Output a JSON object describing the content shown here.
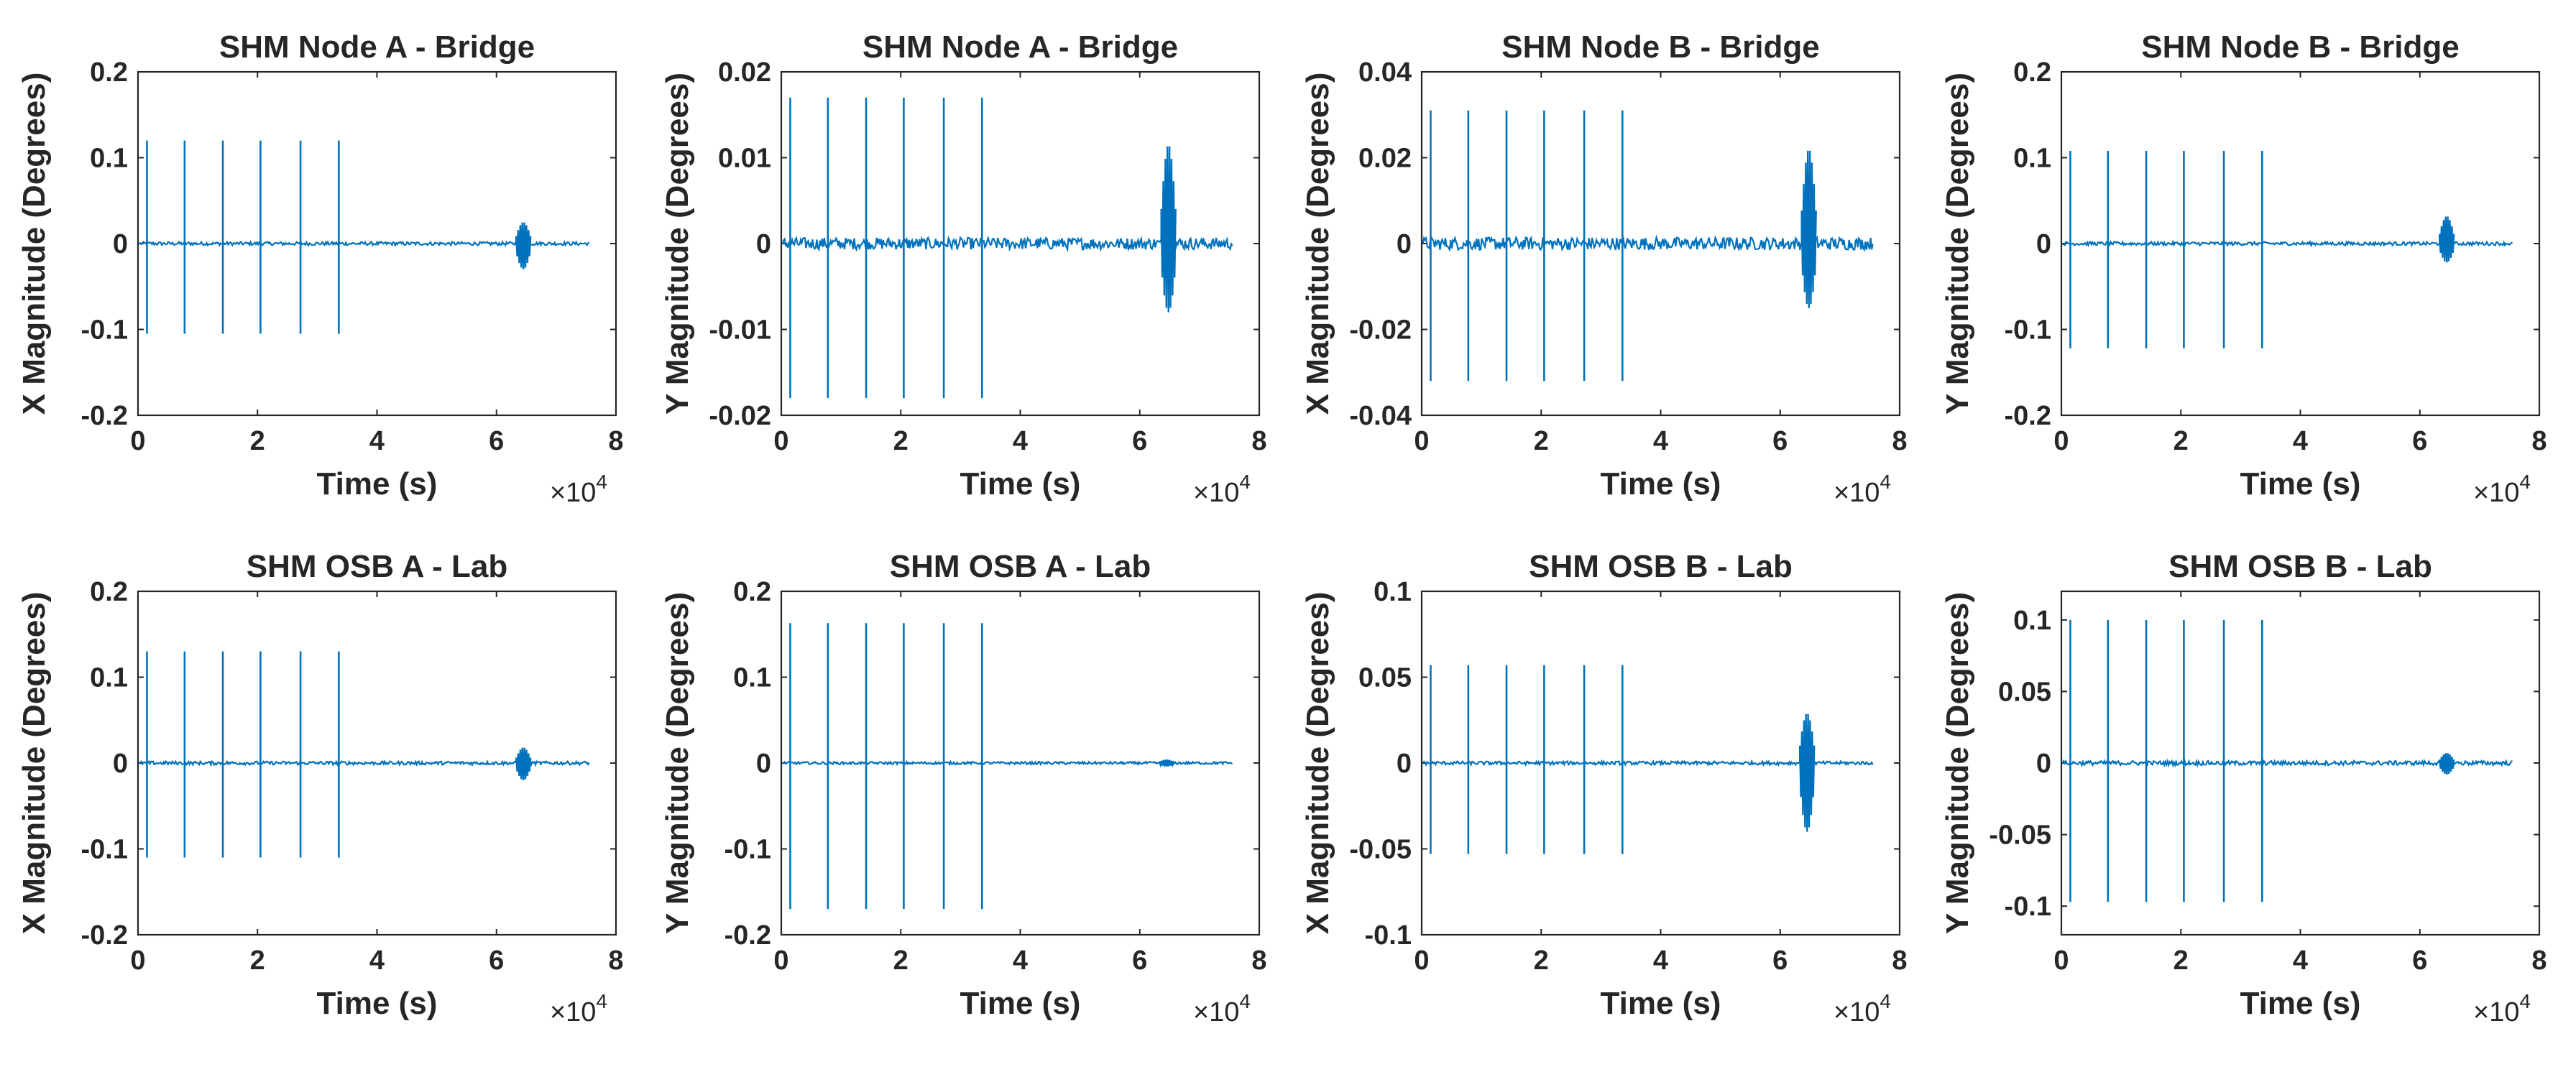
{
  "figure": {
    "background": "#ffffff",
    "axis_color": "#262626",
    "series_color": "#0072BD"
  },
  "chart_data": [
    {
      "type": "line",
      "title": "SHM Node A - Bridge",
      "xlabel": "Time (s)",
      "ylabel": "X Magnitude (Degrees)",
      "xlim": [
        0,
        8
      ],
      "ylim": [
        -0.2,
        0.2
      ],
      "x_multiplier": "×10",
      "x_exponent": "4",
      "xticks": [
        "0",
        "2",
        "4",
        "6",
        "8"
      ],
      "yticks": [
        "-0.2",
        "-0.1",
        "0",
        "0.1",
        "0.2"
      ],
      "grid": false,
      "x_data_end": 7.55,
      "baseline_noise": 0.002,
      "spikes": [
        {
          "x": 0.15,
          "top": 0.12,
          "bottom": -0.105
        },
        {
          "x": 0.78,
          "top": 0.12,
          "bottom": -0.105
        },
        {
          "x": 1.42,
          "top": 0.12,
          "bottom": -0.105
        },
        {
          "x": 2.05,
          "top": 0.12,
          "bottom": -0.105
        },
        {
          "x": 2.72,
          "top": 0.12,
          "bottom": -0.105
        },
        {
          "x": 3.36,
          "top": 0.12,
          "bottom": -0.105
        }
      ],
      "bursts": [
        {
          "x": 6.45,
          "top": 0.025,
          "bottom": -0.03
        }
      ]
    },
    {
      "type": "line",
      "title": "SHM Node A - Bridge",
      "xlabel": "Time (s)",
      "ylabel": "Y Magnitude (Degrees)",
      "xlim": [
        0,
        8
      ],
      "ylim": [
        -0.02,
        0.02
      ],
      "x_multiplier": "×10",
      "x_exponent": "4",
      "xticks": [
        "0",
        "2",
        "4",
        "6",
        "8"
      ],
      "yticks": [
        "-0.02",
        "-0.01",
        "0",
        "0.01",
        "0.02"
      ],
      "grid": false,
      "x_data_end": 7.55,
      "baseline_noise": 0.0007,
      "spikes": [
        {
          "x": 0.15,
          "top": 0.017,
          "bottom": -0.018
        },
        {
          "x": 0.78,
          "top": 0.017,
          "bottom": -0.018
        },
        {
          "x": 1.42,
          "top": 0.017,
          "bottom": -0.018
        },
        {
          "x": 2.05,
          "top": 0.017,
          "bottom": -0.018
        },
        {
          "x": 2.72,
          "top": 0.017,
          "bottom": -0.018
        },
        {
          "x": 3.36,
          "top": 0.017,
          "bottom": -0.018
        }
      ],
      "bursts": [
        {
          "x": 6.48,
          "top": 0.0115,
          "bottom": -0.008
        }
      ]
    },
    {
      "type": "line",
      "title": "SHM Node B - Bridge",
      "xlabel": "Time (s)",
      "ylabel": "X Magnitude (Degrees)",
      "xlim": [
        0,
        8
      ],
      "ylim": [
        -0.04,
        0.04
      ],
      "x_multiplier": "×10",
      "x_exponent": "4",
      "xticks": [
        "0",
        "2",
        "4",
        "6",
        "8"
      ],
      "yticks": [
        "-0.04",
        "-0.02",
        "0",
        "0.02",
        "0.04"
      ],
      "grid": false,
      "x_data_end": 7.55,
      "baseline_noise": 0.0015,
      "spikes": [
        {
          "x": 0.15,
          "top": 0.031,
          "bottom": -0.032
        },
        {
          "x": 0.78,
          "top": 0.031,
          "bottom": -0.032
        },
        {
          "x": 1.42,
          "top": 0.031,
          "bottom": -0.032
        },
        {
          "x": 2.05,
          "top": 0.031,
          "bottom": -0.032
        },
        {
          "x": 2.72,
          "top": 0.031,
          "bottom": -0.032
        },
        {
          "x": 3.36,
          "top": 0.031,
          "bottom": -0.032
        }
      ],
      "bursts": [
        {
          "x": 6.48,
          "top": 0.022,
          "bottom": -0.015
        }
      ]
    },
    {
      "type": "line",
      "title": "SHM Node B - Bridge",
      "xlabel": "Time (s)",
      "ylabel": "Y Magnitude (Degrees)",
      "xlim": [
        0,
        8
      ],
      "ylim": [
        -0.2,
        0.2
      ],
      "x_multiplier": "×10",
      "x_exponent": "4",
      "xticks": [
        "0",
        "2",
        "4",
        "6",
        "8"
      ],
      "yticks": [
        "-0.2",
        "-0.1",
        "0",
        "0.1",
        "0.2"
      ],
      "grid": false,
      "x_data_end": 7.55,
      "baseline_noise": 0.002,
      "spikes": [
        {
          "x": 0.15,
          "top": 0.108,
          "bottom": -0.122
        },
        {
          "x": 0.78,
          "top": 0.108,
          "bottom": -0.122
        },
        {
          "x": 1.42,
          "top": 0.108,
          "bottom": -0.122
        },
        {
          "x": 2.05,
          "top": 0.108,
          "bottom": -0.122
        },
        {
          "x": 2.72,
          "top": 0.108,
          "bottom": -0.122
        },
        {
          "x": 3.36,
          "top": 0.108,
          "bottom": -0.122
        }
      ],
      "bursts": [
        {
          "x": 6.45,
          "top": 0.032,
          "bottom": -0.022
        }
      ]
    },
    {
      "type": "line",
      "title": "SHM OSB A - Lab",
      "xlabel": "Time (s)",
      "ylabel": "X Magnitude (Degrees)",
      "xlim": [
        0,
        8
      ],
      "ylim": [
        -0.2,
        0.2
      ],
      "x_multiplier": "×10",
      "x_exponent": "4",
      "xticks": [
        "0",
        "2",
        "4",
        "6",
        "8"
      ],
      "yticks": [
        "-0.2",
        "-0.1",
        "0",
        "0.1",
        "0.2"
      ],
      "grid": false,
      "x_data_end": 7.55,
      "baseline_noise": 0.002,
      "spikes": [
        {
          "x": 0.15,
          "top": 0.13,
          "bottom": -0.11
        },
        {
          "x": 0.78,
          "top": 0.13,
          "bottom": -0.11
        },
        {
          "x": 1.42,
          "top": 0.13,
          "bottom": -0.11
        },
        {
          "x": 2.05,
          "top": 0.13,
          "bottom": -0.11
        },
        {
          "x": 2.72,
          "top": 0.13,
          "bottom": -0.11
        },
        {
          "x": 3.36,
          "top": 0.13,
          "bottom": -0.11
        }
      ],
      "bursts": [
        {
          "x": 6.45,
          "top": 0.018,
          "bottom": -0.02
        }
      ]
    },
    {
      "type": "line",
      "title": "SHM OSB A - Lab",
      "xlabel": "Time (s)",
      "ylabel": "Y Magnitude (Degrees)",
      "xlim": [
        0,
        8
      ],
      "ylim": [
        -0.2,
        0.2
      ],
      "x_multiplier": "×10",
      "x_exponent": "4",
      "xticks": [
        "0",
        "2",
        "4",
        "6",
        "8"
      ],
      "yticks": [
        "-0.2",
        "-0.1",
        "0",
        "0.1",
        "0.2"
      ],
      "grid": false,
      "x_data_end": 7.55,
      "baseline_noise": 0.0015,
      "spikes": [
        {
          "x": 0.15,
          "top": 0.163,
          "bottom": -0.17
        },
        {
          "x": 0.78,
          "top": 0.163,
          "bottom": -0.17
        },
        {
          "x": 1.42,
          "top": 0.163,
          "bottom": -0.17
        },
        {
          "x": 2.05,
          "top": 0.163,
          "bottom": -0.17
        },
        {
          "x": 2.72,
          "top": 0.163,
          "bottom": -0.17
        },
        {
          "x": 3.36,
          "top": 0.163,
          "bottom": -0.17
        }
      ],
      "bursts": [
        {
          "x": 6.45,
          "top": 0.004,
          "bottom": -0.004
        }
      ]
    },
    {
      "type": "line",
      "title": "SHM OSB B - Lab",
      "xlabel": "Time (s)",
      "ylabel": "X Magnitude (Degrees)",
      "xlim": [
        0,
        8
      ],
      "ylim": [
        -0.1,
        0.1
      ],
      "x_multiplier": "×10",
      "x_exponent": "4",
      "xticks": [
        "0",
        "2",
        "4",
        "6",
        "8"
      ],
      "yticks": [
        "-0.1",
        "-0.05",
        "0",
        "0.05",
        "0.1"
      ],
      "grid": false,
      "x_data_end": 7.55,
      "baseline_noise": 0.001,
      "spikes": [
        {
          "x": 0.15,
          "top": 0.057,
          "bottom": -0.053
        },
        {
          "x": 0.78,
          "top": 0.057,
          "bottom": -0.053
        },
        {
          "x": 1.42,
          "top": 0.057,
          "bottom": -0.053
        },
        {
          "x": 2.05,
          "top": 0.057,
          "bottom": -0.053
        },
        {
          "x": 2.72,
          "top": 0.057,
          "bottom": -0.053
        },
        {
          "x": 3.36,
          "top": 0.057,
          "bottom": -0.053
        }
      ],
      "bursts": [
        {
          "x": 6.45,
          "top": 0.029,
          "bottom": -0.04
        }
      ]
    },
    {
      "type": "line",
      "title": "SHM OSB B - Lab",
      "xlabel": "Time (s)",
      "ylabel": "Y Magnitude (Degrees)",
      "xlim": [
        0,
        8
      ],
      "ylim": [
        -0.12,
        0.12
      ],
      "x_multiplier": "×10",
      "x_exponent": "4",
      "xticks": [
        "0",
        "2",
        "4",
        "6",
        "8"
      ],
      "yticks": [
        "-0.1",
        "-0.05",
        "0",
        "0.05",
        "0.1"
      ],
      "ytick_values": [
        -0.1,
        -0.05,
        0,
        0.05,
        0.1
      ],
      "grid": false,
      "x_data_end": 7.55,
      "baseline_noise": 0.0015,
      "spikes": [
        {
          "x": 0.15,
          "top": 0.1,
          "bottom": -0.097
        },
        {
          "x": 0.78,
          "top": 0.1,
          "bottom": -0.097
        },
        {
          "x": 1.42,
          "top": 0.1,
          "bottom": -0.097
        },
        {
          "x": 2.05,
          "top": 0.1,
          "bottom": -0.097
        },
        {
          "x": 2.72,
          "top": 0.1,
          "bottom": -0.097
        },
        {
          "x": 3.36,
          "top": 0.1,
          "bottom": -0.097
        }
      ],
      "bursts": [
        {
          "x": 6.45,
          "top": 0.007,
          "bottom": -0.008
        }
      ]
    }
  ]
}
